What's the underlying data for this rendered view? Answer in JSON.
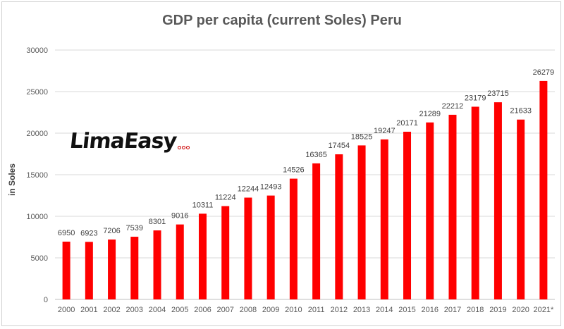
{
  "chart_data": {
    "type": "bar",
    "title": "GDP per capita (current Soles) Peru",
    "xlabel": "",
    "ylabel": "in Soles",
    "ylim": [
      0,
      30000
    ],
    "yticks": [
      0,
      5000,
      10000,
      15000,
      20000,
      25000,
      30000
    ],
    "grid": true,
    "bar_color": "#ff0000",
    "categories": [
      "2000",
      "2001",
      "2002",
      "2003",
      "2004",
      "2005",
      "2006",
      "2007",
      "2008",
      "2009",
      "2010",
      "2011",
      "2012",
      "2013",
      "2014",
      "2015",
      "2016",
      "2017",
      "2018",
      "2019",
      "2020",
      "2021*"
    ],
    "values": [
      6950,
      6923,
      7206,
      7539,
      8301,
      9016,
      10311,
      11224,
      12244,
      12493,
      14526,
      16365,
      17454,
      18525,
      19247,
      20171,
      21289,
      22212,
      23179,
      23715,
      21633,
      26279
    ]
  },
  "logo": {
    "text": "LimaEasy",
    "dot_color": "#cc0000"
  }
}
